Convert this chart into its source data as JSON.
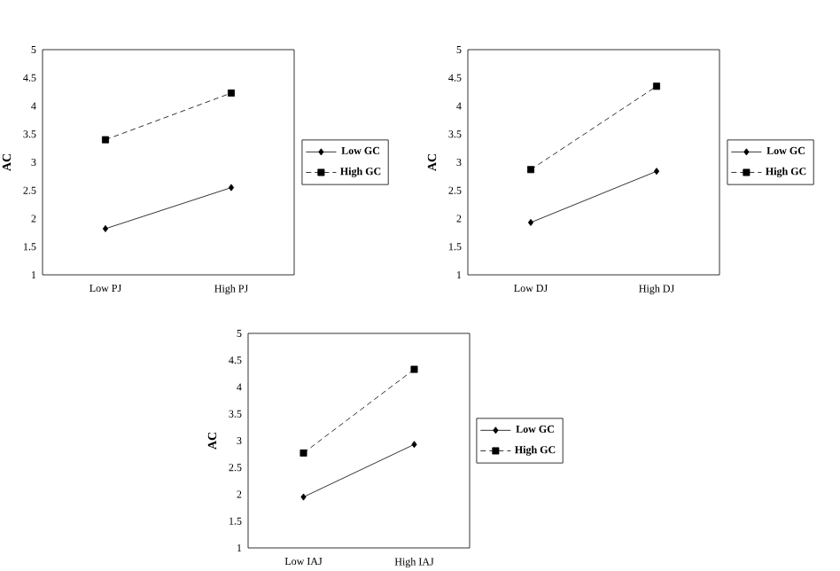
{
  "chart_data": [
    {
      "type": "line",
      "categories": [
        "Low PJ",
        "High PJ"
      ],
      "ylabel": "AC",
      "ylim": [
        1,
        5
      ],
      "yticks": [
        1,
        1.5,
        2,
        2.5,
        3,
        3.5,
        4,
        4.5,
        5
      ],
      "legend": "right",
      "grid": false,
      "series": [
        {
          "name": "Low GC",
          "color": "#000000",
          "values": [
            1.82,
            2.55
          ],
          "marker": "diamond",
          "line_style": "solid"
        },
        {
          "name": "High GC",
          "color": "#000000",
          "values": [
            3.4,
            4.23
          ],
          "marker": "square",
          "line_style": "dashed"
        }
      ]
    },
    {
      "type": "line",
      "categories": [
        "Low DJ",
        "High DJ"
      ],
      "ylabel": "AC",
      "ylim": [
        1,
        5
      ],
      "yticks": [
        1,
        1.5,
        2,
        2.5,
        3,
        3.5,
        4,
        4.5,
        5
      ],
      "legend": "right",
      "grid": false,
      "series": [
        {
          "name": "Low GC",
          "color": "#000000",
          "values": [
            1.93,
            2.84
          ],
          "marker": "diamond",
          "line_style": "solid"
        },
        {
          "name": "High GC",
          "color": "#000000",
          "values": [
            2.87,
            4.35
          ],
          "marker": "square",
          "line_style": "dashed"
        }
      ]
    },
    {
      "type": "line",
      "categories": [
        "Low IAJ",
        "High IAJ"
      ],
      "ylabel": "AC",
      "ylim": [
        1,
        5
      ],
      "yticks": [
        1,
        1.5,
        2,
        2.5,
        3,
        3.5,
        4,
        4.5,
        5
      ],
      "legend": "right",
      "grid": false,
      "series": [
        {
          "name": "Low GC",
          "color": "#000000",
          "values": [
            1.95,
            2.93
          ],
          "marker": "diamond",
          "line_style": "solid"
        },
        {
          "name": "High GC",
          "color": "#000000",
          "values": [
            2.77,
            4.33
          ],
          "marker": "square",
          "line_style": "dashed"
        }
      ]
    }
  ]
}
